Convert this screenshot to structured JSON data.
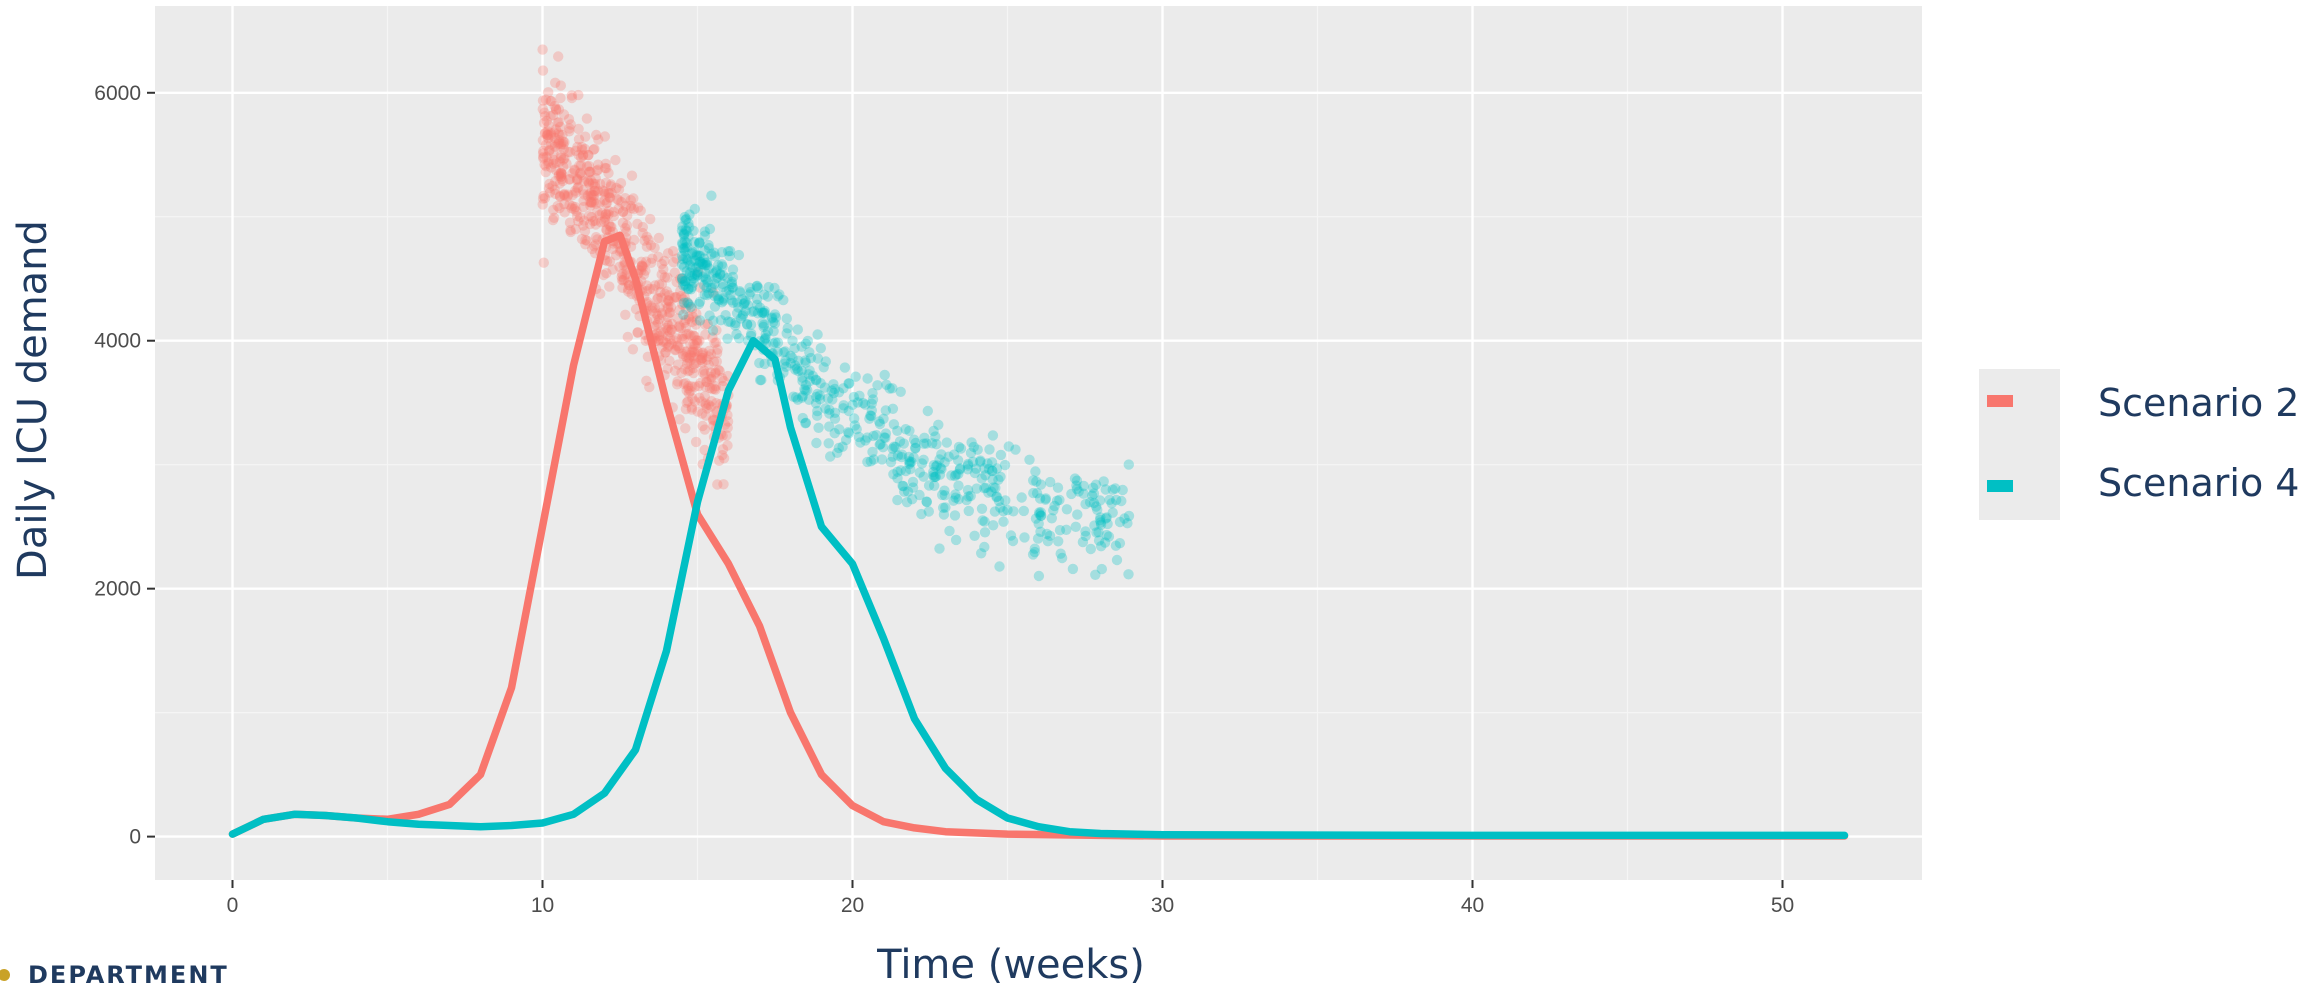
{
  "chart_data": {
    "type": "line",
    "title": "",
    "xlabel": "Time (weeks)",
    "ylabel": "Daily ICU demand",
    "xlim": [
      -2.5,
      54.5
    ],
    "ylim": [
      -350,
      6700
    ],
    "xticks": [
      0,
      10,
      20,
      30,
      40,
      50
    ],
    "yticks": [
      0,
      2000,
      4000,
      6000
    ],
    "grid": true,
    "legend_position": "right",
    "series": [
      {
        "name": "Scenario 2",
        "color": "#F8766D",
        "line": [
          [
            0,
            20
          ],
          [
            1,
            140
          ],
          [
            2,
            180
          ],
          [
            3,
            170
          ],
          [
            4,
            150
          ],
          [
            5,
            140
          ],
          [
            6,
            180
          ],
          [
            7,
            260
          ],
          [
            8,
            500
          ],
          [
            9,
            1200
          ],
          [
            10,
            2500
          ],
          [
            11,
            3800
          ],
          [
            12,
            4800
          ],
          [
            12.5,
            4850
          ],
          [
            13,
            4500
          ],
          [
            14,
            3500
          ],
          [
            15,
            2600
          ],
          [
            16,
            2200
          ],
          [
            17,
            1700
          ],
          [
            18,
            1000
          ],
          [
            19,
            500
          ],
          [
            20,
            250
          ],
          [
            21,
            120
          ],
          [
            22,
            70
          ],
          [
            23,
            40
          ],
          [
            25,
            20
          ],
          [
            28,
            10
          ],
          [
            30,
            5
          ],
          [
            40,
            5
          ],
          [
            52,
            5
          ]
        ],
        "points": {
          "x_range": [
            10,
            16
          ],
          "y_center_at": [
            [
              10,
              5600
            ],
            [
              11,
              5300
            ],
            [
              12,
              5000
            ],
            [
              13,
              4600
            ],
            [
              14,
              4200
            ],
            [
              15,
              3800
            ],
            [
              16,
              3400
            ]
          ],
          "spread": 500,
          "count": 700
        }
      },
      {
        "name": "Scenario 4",
        "color": "#00BFC4",
        "line": [
          [
            0,
            20
          ],
          [
            1,
            140
          ],
          [
            2,
            180
          ],
          [
            3,
            170
          ],
          [
            4,
            150
          ],
          [
            5,
            120
          ],
          [
            6,
            100
          ],
          [
            7,
            90
          ],
          [
            8,
            80
          ],
          [
            9,
            90
          ],
          [
            10,
            110
          ],
          [
            11,
            180
          ],
          [
            12,
            350
          ],
          [
            13,
            700
          ],
          [
            14,
            1500
          ],
          [
            15,
            2700
          ],
          [
            16,
            3600
          ],
          [
            16.8,
            4000
          ],
          [
            17.5,
            3850
          ],
          [
            18,
            3300
          ],
          [
            19,
            2500
          ],
          [
            20,
            2200
          ],
          [
            21,
            1600
          ],
          [
            22,
            950
          ],
          [
            23,
            550
          ],
          [
            24,
            300
          ],
          [
            25,
            150
          ],
          [
            26,
            80
          ],
          [
            27,
            40
          ],
          [
            28,
            25
          ],
          [
            30,
            15
          ],
          [
            40,
            10
          ],
          [
            52,
            10
          ]
        ],
        "points": {
          "x_range": [
            14.5,
            29
          ],
          "y_center_at": [
            [
              14.5,
              4700
            ],
            [
              16,
              4400
            ],
            [
              17,
              4100
            ],
            [
              18,
              3800
            ],
            [
              19,
              3550
            ],
            [
              20,
              3400
            ],
            [
              21,
              3200
            ],
            [
              22,
              3000
            ],
            [
              23,
              2900
            ],
            [
              24,
              2800
            ],
            [
              25,
              2700
            ],
            [
              27,
              2600
            ],
            [
              29,
              2550
            ]
          ],
          "spread": 380,
          "count": 650
        }
      }
    ]
  },
  "footer": {
    "text": "DEPARTMENT"
  }
}
